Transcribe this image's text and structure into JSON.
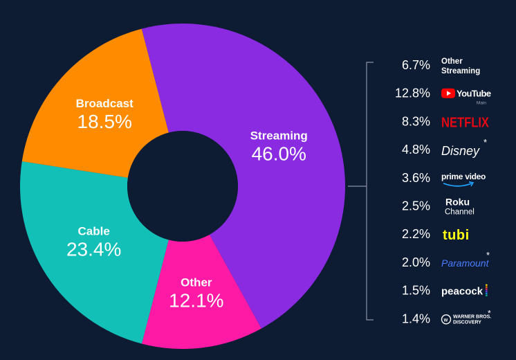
{
  "chart_data": {
    "type": "pie",
    "variant": "donut",
    "categories": [
      "Streaming",
      "Other",
      "Cable",
      "Broadcast"
    ],
    "values": [
      46.0,
      12.1,
      23.4,
      18.5
    ],
    "labels": [
      "46.0%",
      "12.1%",
      "23.4%",
      "18.5%"
    ],
    "colors": [
      "#8a2be2",
      "#ff1aa6",
      "#12c0b8",
      "#ff8c00"
    ],
    "breakdown": {
      "parent": "Streaming",
      "items": [
        {
          "name": "Other Streaming",
          "value": 6.7,
          "label": "6.7%",
          "logo_text": "Other\nStreaming",
          "icon": "other-streaming-text"
        },
        {
          "name": "YouTube",
          "value": 12.8,
          "label": "12.8%",
          "logo_text": "YouTube",
          "logo_sub": "Main",
          "icon": "youtube-logo"
        },
        {
          "name": "Netflix",
          "value": 8.3,
          "label": "8.3%",
          "logo_text": "NETFLIX",
          "icon": "netflix-logo"
        },
        {
          "name": "Disney",
          "value": 4.8,
          "label": "4.8%",
          "logo_text": "Disney",
          "asterisk": "*",
          "icon": "disney-logo"
        },
        {
          "name": "Prime Video",
          "value": 3.6,
          "label": "3.6%",
          "logo_text": "prime video",
          "icon": "prime-video-logo"
        },
        {
          "name": "Roku Channel",
          "value": 2.5,
          "label": "2.5%",
          "logo_text": "Roku\nChannel",
          "icon": "roku-channel-logo"
        },
        {
          "name": "Tubi",
          "value": 2.2,
          "label": "2.2%",
          "logo_text": "tubi",
          "icon": "tubi-logo"
        },
        {
          "name": "Paramount",
          "value": 2.0,
          "label": "2.0%",
          "logo_text": "Paramount",
          "asterisk": "*",
          "icon": "paramount-logo"
        },
        {
          "name": "Peacock",
          "value": 1.5,
          "label": "1.5%",
          "logo_text": "peacock",
          "icon": "peacock-logo"
        },
        {
          "name": "Warner Bros. Discovery",
          "value": 1.4,
          "label": "1.4%",
          "logo_text": "WARNER BROS.\nDISCOVERY",
          "asterisk": "*",
          "icon": "wbd-logo"
        }
      ]
    }
  },
  "colors": {
    "background": "#0d1b33",
    "hole": "#0d1b33",
    "text": "#ffffff",
    "bracket": "#8a93a6",
    "youtube_red": "#ff0000",
    "netflix_red": "#e50914",
    "prime_blue": "#1fa3ff",
    "roku_text": "#ffffff",
    "tubi_yellow": "#ffff13",
    "paramount_blue": "#4a7dff"
  }
}
